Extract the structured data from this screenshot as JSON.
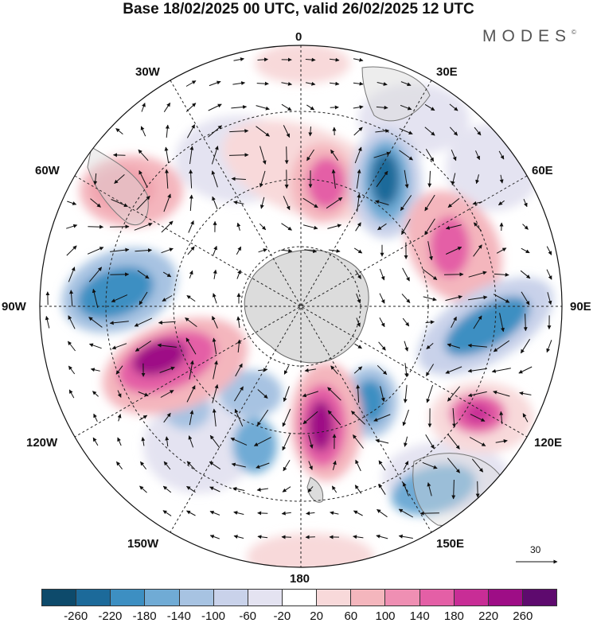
{
  "title": "Base 18/02/2025 00 UTC, valid 26/02/2025 12 UTC",
  "brand": "MODES",
  "brand_mark": "©",
  "longitude_labels": {
    "lon0": "0",
    "lon30e": "30E",
    "lon60e": "60E",
    "lon90e": "90E",
    "lon120e": "120E",
    "lon150e": "150E",
    "lon180": "180",
    "lon150w": "150W",
    "lon120w": "120W",
    "lon90w": "90W",
    "lon60w": "60W",
    "lon30w": "30W"
  },
  "reference_vector": "30",
  "colorbar": {
    "colors": [
      "#0d4a6b",
      "#1c6a9a",
      "#3d8fc2",
      "#70abd5",
      "#a7c3e2",
      "#c9d2ea",
      "#e4e3f1",
      "#ffffff",
      "#f8d9da",
      "#f4b6bd",
      "#ef8fb3",
      "#e45fa6",
      "#c82d96",
      "#9e0d86",
      "#5e0a6e"
    ],
    "tick_labels": [
      "-260",
      "-220",
      "-180",
      "-140",
      "-100",
      "-60",
      "-20",
      "20",
      "60",
      "100",
      "140",
      "180",
      "220",
      "260"
    ]
  }
}
